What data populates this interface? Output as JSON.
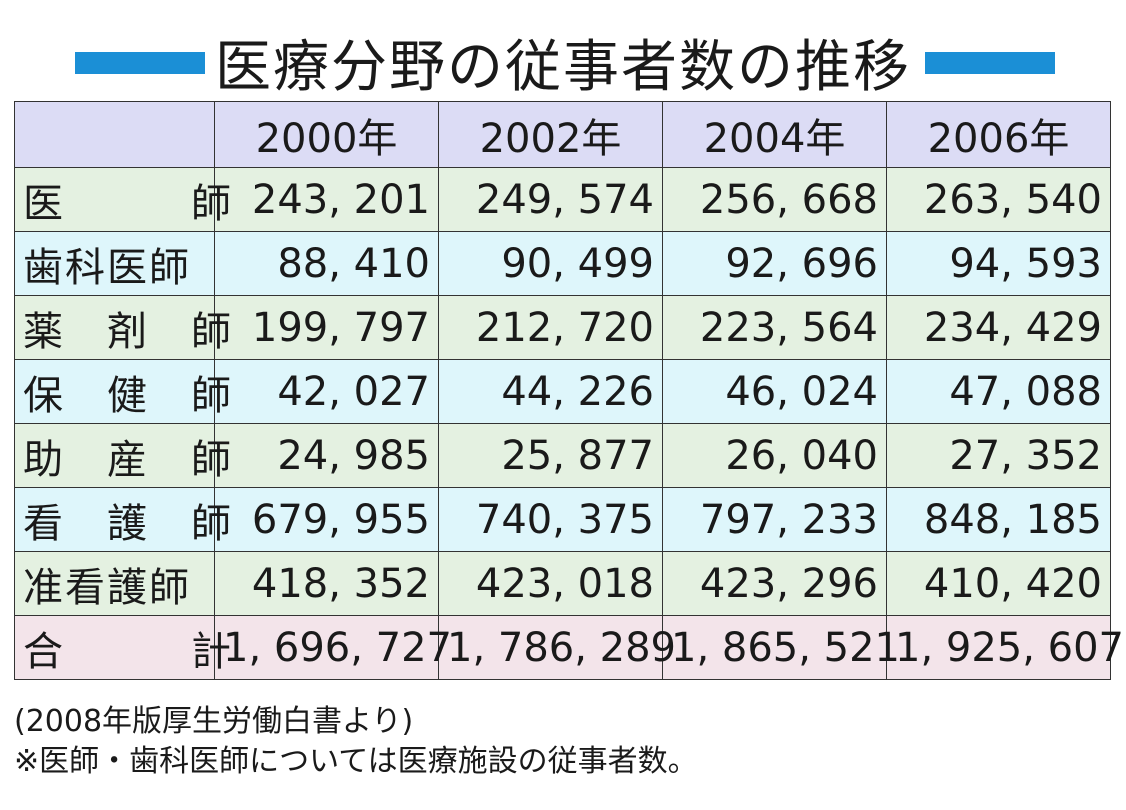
{
  "chart_data": {
    "type": "table",
    "title": "医療分野の従事者数の推移",
    "columns": [
      "2000年",
      "2002年",
      "2004年",
      "2006年"
    ],
    "rows": [
      {
        "label": "医　　　師",
        "values": [
          "243, 201",
          "249, 574",
          "256, 668",
          "263, 540"
        ]
      },
      {
        "label": "歯科医師",
        "values": [
          "88, 410",
          "90, 499",
          "92, 696",
          "94, 593"
        ]
      },
      {
        "label": "薬　剤　師",
        "values": [
          "199, 797",
          "212, 720",
          "223, 564",
          "234, 429"
        ]
      },
      {
        "label": "保　健　師",
        "values": [
          "42, 027",
          "44, 226",
          "46, 024",
          "47, 088"
        ]
      },
      {
        "label": "助　産　師",
        "values": [
          "24, 985",
          "25, 877",
          "26, 040",
          "27, 352"
        ]
      },
      {
        "label": "看　護　師",
        "values": [
          "679, 955",
          "740, 375",
          "797, 233",
          "848, 185"
        ]
      },
      {
        "label": "准看護師",
        "values": [
          "418, 352",
          "423, 018",
          "423, 296",
          "410, 420"
        ]
      },
      {
        "label": "合　　　計",
        "values": [
          "1, 696, 727",
          "1, 786, 289",
          "1, 865, 521",
          "1, 925, 607"
        ]
      }
    ],
    "row_colors": [
      "#e4f1e1",
      "#def6fb",
      "#e4f1e1",
      "#def6fb",
      "#e4f1e1",
      "#def6fb",
      "#e4f1e1",
      "#f3e4ea"
    ],
    "header_color": "#dcdcf5",
    "accent_color": "#1b8fd6"
  },
  "footnotes": {
    "source": "(2008年版厚生労働白書より)",
    "note": "※医師・歯科医師については医療施設の従事者数。"
  }
}
